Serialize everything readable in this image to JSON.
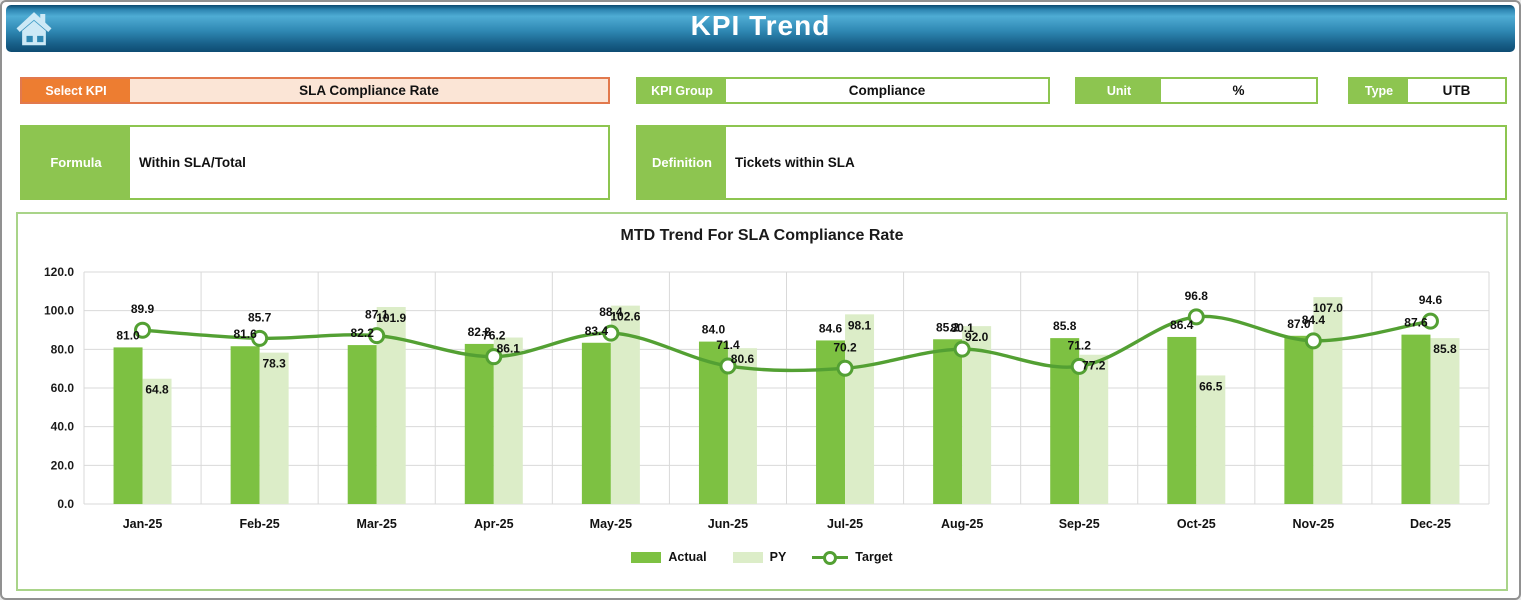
{
  "header": {
    "title": "KPI Trend",
    "home_icon": "home-icon"
  },
  "controls": {
    "select_kpi": {
      "label": "Select KPI",
      "value": "SLA Compliance Rate"
    },
    "kpi_group": {
      "label": "KPI Group",
      "value": "Compliance"
    },
    "unit": {
      "label": "Unit",
      "value": "%"
    },
    "type": {
      "label": "Type",
      "value": "UTB"
    }
  },
  "info": {
    "formula": {
      "label": "Formula",
      "value": "Within SLA/Total"
    },
    "definition": {
      "label": "Definition",
      "value": "Tickets within SLA"
    }
  },
  "chart_data": {
    "type": "bar+line",
    "title": "MTD Trend For SLA Compliance Rate",
    "categories": [
      "Jan-25",
      "Feb-25",
      "Mar-25",
      "Apr-25",
      "May-25",
      "Jun-25",
      "Jul-25",
      "Aug-25",
      "Sep-25",
      "Oct-25",
      "Nov-25",
      "Dec-25"
    ],
    "series": [
      {
        "name": "Actual",
        "type": "bar",
        "color": "#7DC142",
        "values": [
          81.0,
          81.6,
          82.2,
          82.8,
          83.4,
          84.0,
          84.6,
          85.2,
          85.8,
          86.4,
          87.0,
          87.6
        ]
      },
      {
        "name": "PY",
        "type": "bar",
        "color": "#DCEDC8",
        "values": [
          64.8,
          78.3,
          101.9,
          86.1,
          102.6,
          80.6,
          98.1,
          92.0,
          77.2,
          66.5,
          107.0,
          85.8
        ]
      },
      {
        "name": "Target",
        "type": "line",
        "marker": "open-circle",
        "color": "#53A033",
        "values": [
          89.9,
          85.7,
          87.1,
          76.2,
          88.4,
          71.4,
          70.2,
          80.1,
          71.2,
          96.8,
          84.4,
          94.6
        ]
      }
    ],
    "xlabel": "",
    "ylabel": "",
    "ylim": [
      0,
      120
    ],
    "ytick_step": 20,
    "ytick_format": "one-decimal",
    "grid": true,
    "data_labels": true,
    "legend_position": "bottom"
  },
  "colors": {
    "accent_green": "#8DC550",
    "accent_orange": "#ED7D31",
    "orange_fill": "#FBE5D6",
    "chart_border": "#A9D489",
    "grid": "#D9D9D9",
    "header_blue_top": "#4FACD4",
    "header_blue_bottom": "#0E4C72"
  }
}
